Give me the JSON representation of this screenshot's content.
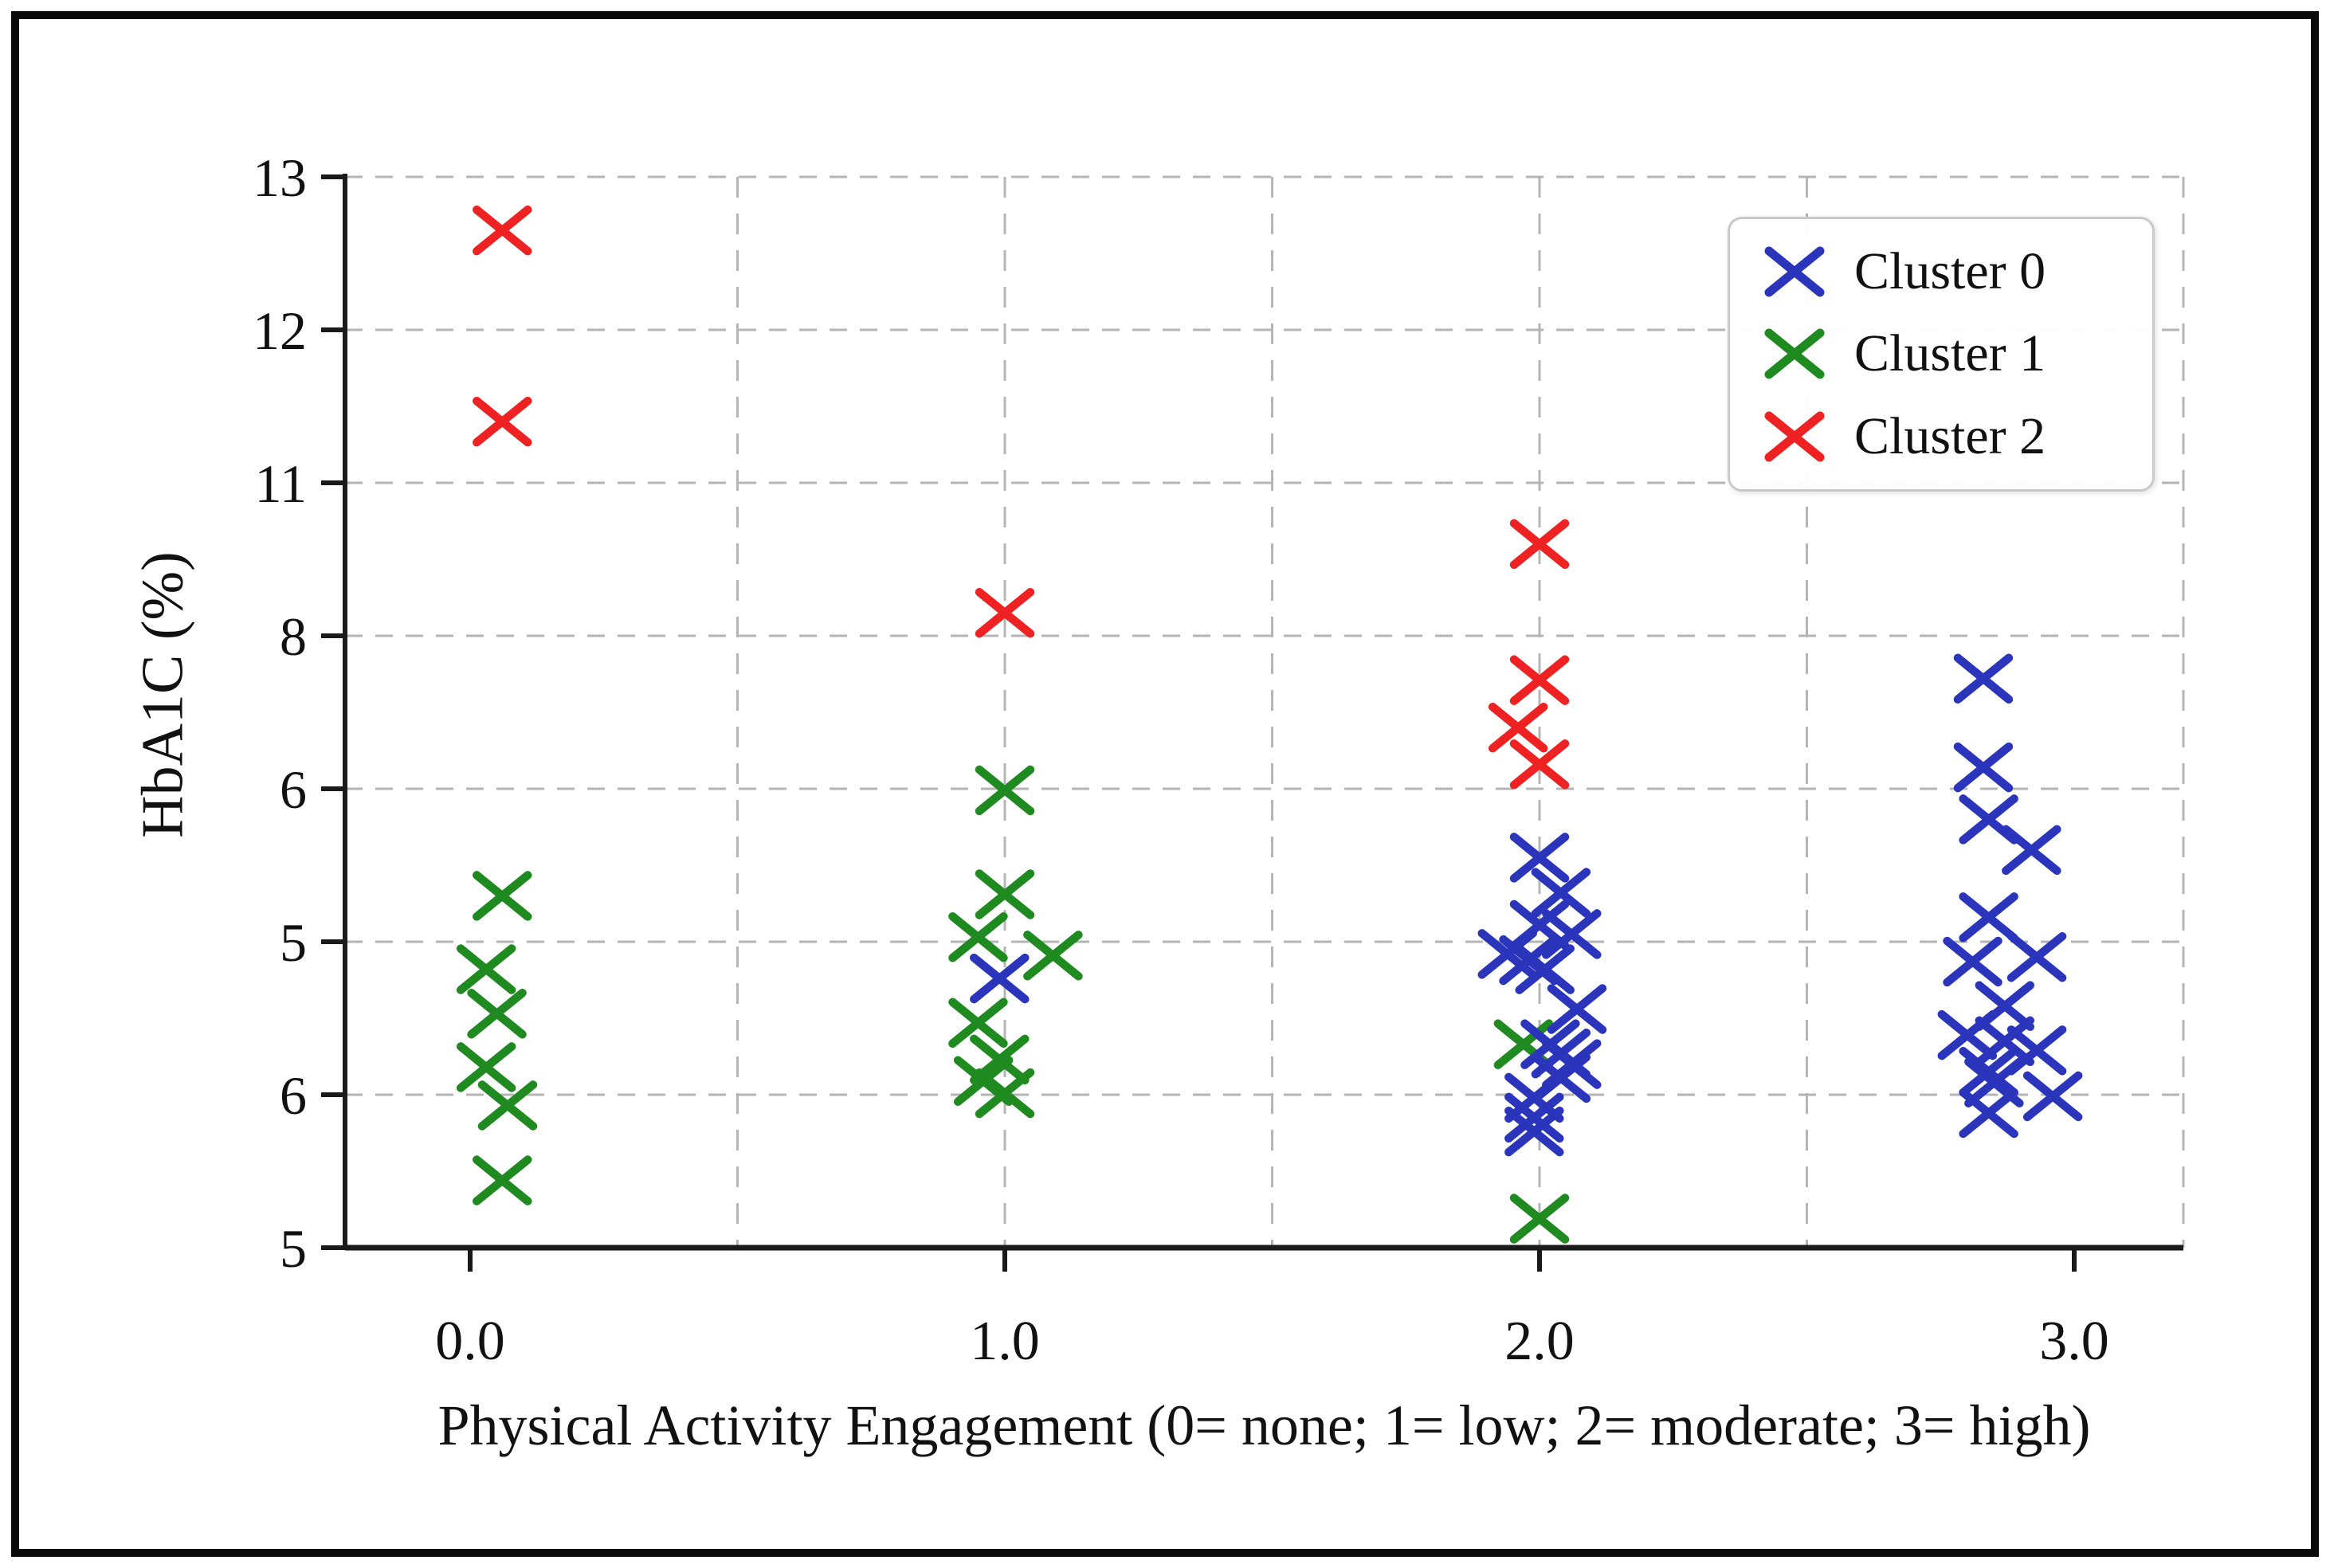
{
  "figure": {
    "background": "#ffffff",
    "border_color": "#0a0a0a",
    "text_color": "#111111",
    "grid_color": "#b5b5b5",
    "axis_color": "#1a1a1a"
  },
  "chart_data": {
    "type": "scatter",
    "title": "",
    "xlabel": "Physical Activity Engagement (0= none; 1= low; 2= moderate; 3= high)",
    "ylabel": "HbA1C (%)",
    "marker": "x",
    "grid": {
      "style": "dashed",
      "horizontal_at_every_y_tick": true,
      "vertical_lines_x": [
        0.5,
        1.0,
        1.5,
        2.0,
        2.5
      ],
      "dashed_right_edge": true
    },
    "x_ticks": [
      {
        "value": 0,
        "label": "0.0"
      },
      {
        "value": 1,
        "label": "1.0"
      },
      {
        "value": 2,
        "label": "2.0"
      },
      {
        "value": 3,
        "label": "3.0"
      }
    ],
    "y_ticks_top_to_bottom": [
      "13",
      "12",
      "11",
      "8",
      "6",
      "5",
      "6",
      "5"
    ],
    "y_scale_note": "8 evenly spaced ticks; point y given in tick-units measured up from the bottom tick (0 = bottom '5' tick, 7 = top '13' tick)",
    "xlim": [
      -0.23,
      3.2
    ],
    "legend": {
      "position": "upper right",
      "entries": [
        {
          "label": "Cluster 0",
          "color": "#2a35bb"
        },
        {
          "label": "Cluster 1",
          "color": "#1f8a1f"
        },
        {
          "label": "Cluster 2",
          "color": "#ee2222"
        }
      ]
    },
    "series": [
      {
        "name": "Cluster 1",
        "color": "#1f8a1f",
        "points": [
          [
            0.06,
            2.3
          ],
          [
            0.03,
            1.82
          ],
          [
            0.05,
            1.53
          ],
          [
            0.03,
            1.18
          ],
          [
            0.07,
            0.93
          ],
          [
            0.06,
            0.44
          ],
          [
            1.0,
            2.99
          ],
          [
            1.0,
            2.31
          ],
          [
            0.95,
            2.03
          ],
          [
            1.09,
            1.91
          ],
          [
            0.95,
            1.47
          ],
          [
            0.99,
            1.23
          ],
          [
            0.96,
            1.09
          ],
          [
            1.0,
            1.01
          ],
          [
            1.97,
            1.33
          ],
          [
            2.0,
            0.19
          ]
        ]
      },
      {
        "name": "Cluster 0",
        "color": "#2a35bb",
        "points": [
          [
            0.99,
            1.76
          ],
          [
            2.0,
            2.55
          ],
          [
            2.04,
            2.32
          ],
          [
            2.0,
            2.11
          ],
          [
            2.06,
            2.05
          ],
          [
            1.94,
            1.92
          ],
          [
            1.98,
            1.88
          ],
          [
            2.01,
            1.82
          ],
          [
            2.07,
            1.56
          ],
          [
            2.02,
            1.33
          ],
          [
            2.04,
            1.27
          ],
          [
            2.06,
            1.2
          ],
          [
            2.04,
            1.11
          ],
          [
            1.99,
            0.98
          ],
          [
            1.99,
            0.85
          ],
          [
            1.99,
            0.76
          ],
          [
            2.83,
            3.72
          ],
          [
            2.83,
            3.14
          ],
          [
            2.84,
            2.8
          ],
          [
            2.92,
            2.6
          ],
          [
            2.84,
            2.16
          ],
          [
            2.93,
            1.9
          ],
          [
            2.81,
            1.87
          ],
          [
            2.87,
            1.58
          ],
          [
            2.8,
            1.39
          ],
          [
            2.87,
            1.35
          ],
          [
            2.93,
            1.29
          ],
          [
            2.84,
            1.15
          ],
          [
            2.85,
            1.08
          ],
          [
            2.96,
            0.99
          ],
          [
            2.84,
            0.88
          ]
        ]
      },
      {
        "name": "Cluster 2",
        "color": "#ee2222",
        "points": [
          [
            0.06,
            6.65
          ],
          [
            0.06,
            5.4
          ],
          [
            1.0,
            4.15
          ],
          [
            2.0,
            4.6
          ],
          [
            2.0,
            3.71
          ],
          [
            1.96,
            3.4
          ],
          [
            2.0,
            3.16
          ]
        ]
      }
    ]
  }
}
